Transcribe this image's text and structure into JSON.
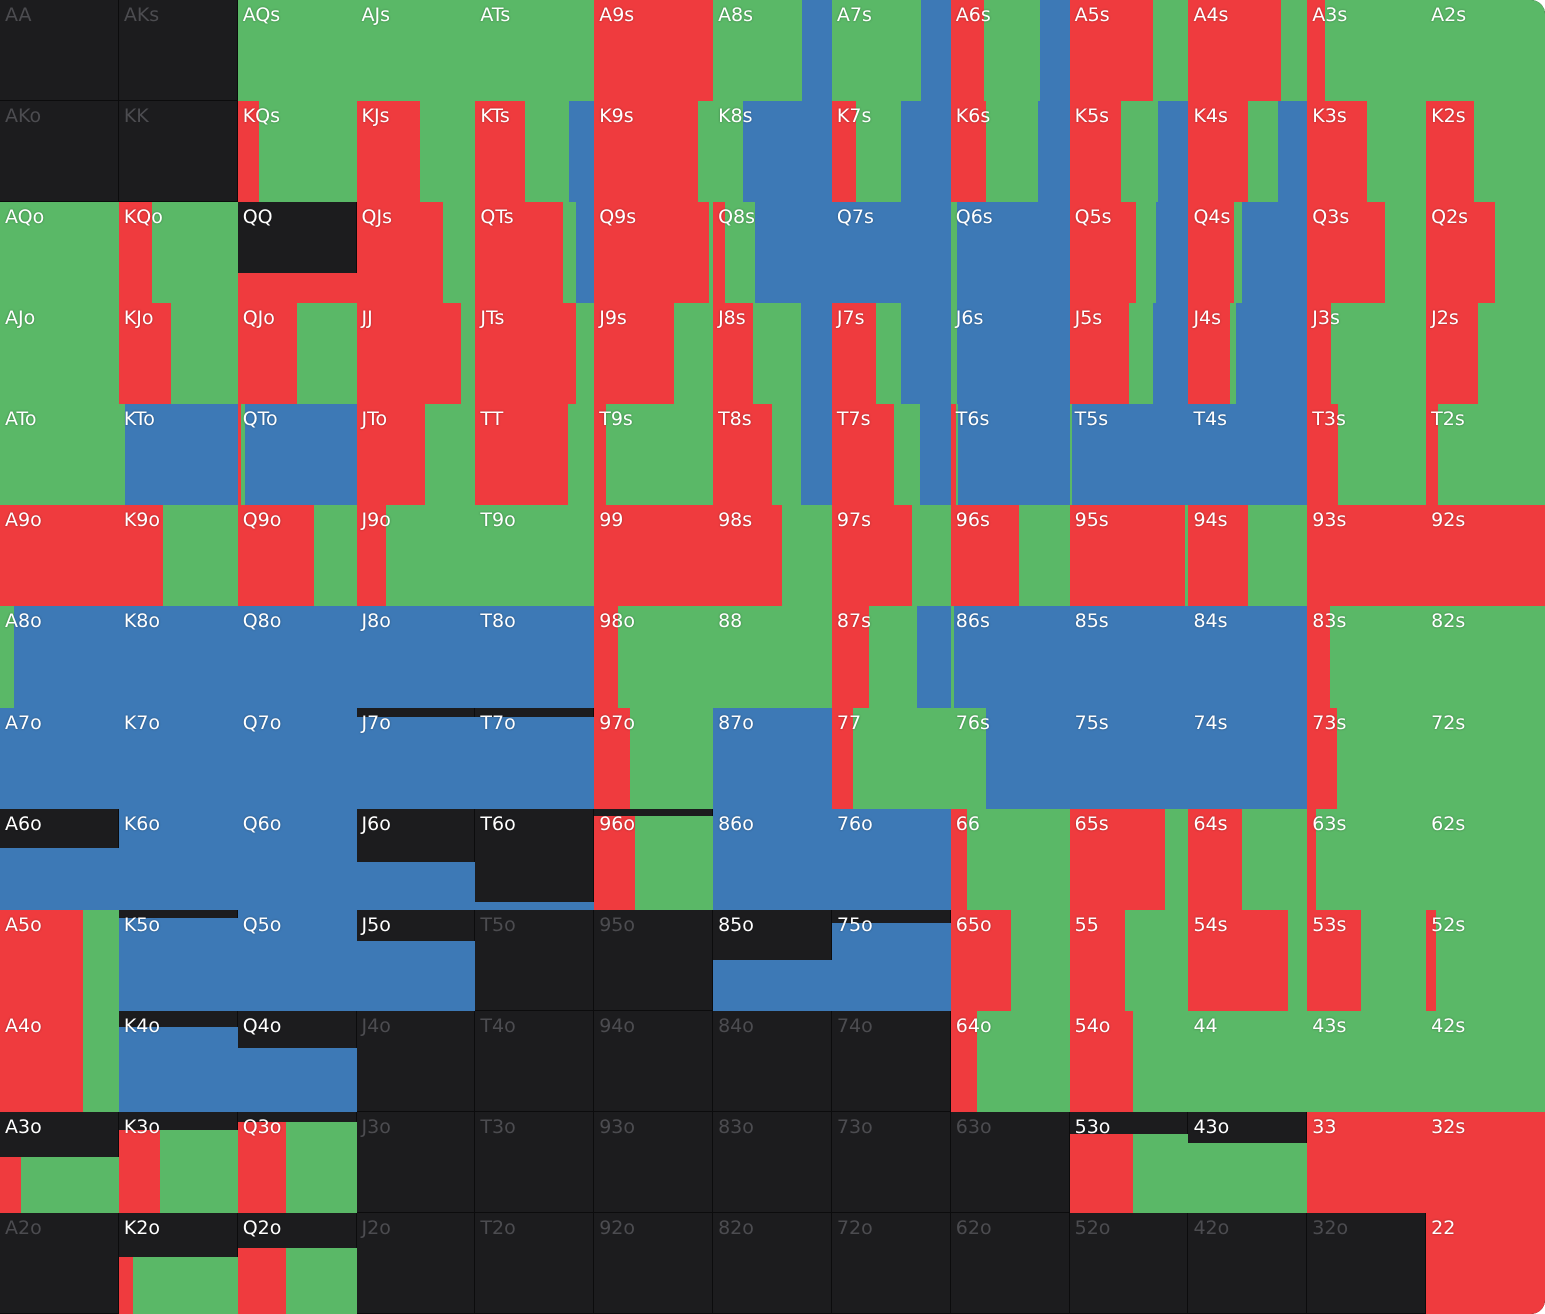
{
  "colors": {
    "red": "#ef3b3e",
    "green": "#5ab867",
    "blue": "#3d79b6",
    "fold": "#1c1c1e"
  },
  "legend": {
    "format": "each hand: [fill fraction of cell height, red share, green share, blue share]"
  },
  "rows": [
    [
      [
        "AA",
        0,
        0,
        0,
        0
      ],
      [
        "AKs",
        0,
        0,
        0,
        0
      ],
      [
        "AQs",
        1,
        0,
        1,
        0
      ],
      [
        "AJs",
        1,
        0,
        1,
        0
      ],
      [
        "ATs",
        1,
        0,
        1,
        0
      ],
      [
        "A9s",
        1,
        1,
        0,
        0
      ],
      [
        "A8s",
        1,
        0,
        0.75,
        0.25
      ],
      [
        "A7s",
        1,
        0,
        0.75,
        0.25
      ],
      [
        "A6s",
        1,
        0.28,
        0.47,
        0.25
      ],
      [
        "A5s",
        1,
        0.7,
        0.3,
        0
      ],
      [
        "A4s",
        1,
        0.78,
        0.22,
        0
      ],
      [
        "A3s",
        1,
        0.15,
        0.85,
        0
      ],
      [
        "A2s",
        1,
        0,
        1,
        0
      ]
    ],
    [
      [
        "AKo",
        0,
        0,
        0,
        0
      ],
      [
        "KK",
        0,
        0,
        0,
        0
      ],
      [
        "KQs",
        1,
        0.18,
        0.82,
        0
      ],
      [
        "KJs",
        1,
        0.53,
        0.47,
        0
      ],
      [
        "KTs",
        1,
        0.42,
        0.37,
        0.21
      ],
      [
        "K9s",
        1,
        0.87,
        0.13,
        0
      ],
      [
        "K8s",
        1,
        0,
        0.25,
        0.75
      ],
      [
        "K7s",
        1,
        0.2,
        0.38,
        0.42
      ],
      [
        "K6s",
        1,
        0.3,
        0.43,
        0.27
      ],
      [
        "K5s",
        1,
        0.43,
        0.31,
        0.26
      ],
      [
        "K4s",
        1,
        0.5,
        0.25,
        0.25
      ],
      [
        "K3s",
        1,
        0.5,
        0.5,
        0
      ],
      [
        "K2s",
        1,
        0.4,
        0.6,
        0
      ]
    ],
    [
      [
        "AQo",
        1,
        0,
        1,
        0
      ],
      [
        "KQo",
        1,
        0.28,
        0.72,
        0
      ],
      [
        "QQ",
        0.3,
        1,
        0,
        0
      ],
      [
        "QJs",
        1,
        0.73,
        0.27,
        0
      ],
      [
        "QTs",
        1,
        0.74,
        0.11,
        0.15
      ],
      [
        "Q9s",
        1,
        0.97,
        0.03,
        0
      ],
      [
        "Q8s",
        1,
        0.1,
        0.25,
        0.65
      ],
      [
        "Q7s",
        1,
        0,
        0,
        1
      ],
      [
        "Q6s",
        1,
        0,
        0.05,
        0.95
      ],
      [
        "Q5s",
        1,
        0.56,
        0.17,
        0.27
      ],
      [
        "Q4s",
        1,
        0.38,
        0.07,
        0.55
      ],
      [
        "Q3s",
        1,
        0.65,
        0.35,
        0
      ],
      [
        "Q2s",
        1,
        0.58,
        0.42,
        0
      ]
    ],
    [
      [
        "AJo",
        1,
        0,
        1,
        0
      ],
      [
        "KJo",
        1,
        0.44,
        0.56,
        0
      ],
      [
        "QJo",
        1,
        0.5,
        0.5,
        0
      ],
      [
        "JJ",
        1,
        0.88,
        0.12,
        0
      ],
      [
        "JTs",
        1,
        0.85,
        0.15,
        0
      ],
      [
        "J9s",
        1,
        0.67,
        0.33,
        0
      ],
      [
        "J8s",
        1,
        0.34,
        0.4,
        0.26
      ],
      [
        "J7s",
        1,
        0.37,
        0.21,
        0.42
      ],
      [
        "J6s",
        1,
        0,
        0.05,
        0.95
      ],
      [
        "J5s",
        1,
        0.5,
        0.2,
        0.3
      ],
      [
        "J4s",
        1,
        0.35,
        0.05,
        0.6
      ],
      [
        "J3s",
        1,
        0.2,
        0.8,
        0
      ],
      [
        "J2s",
        1,
        0.44,
        0.56,
        0
      ]
    ],
    [
      [
        "ATo",
        1,
        0,
        1,
        0
      ],
      [
        "KTo",
        1,
        0,
        0.05,
        0.95
      ],
      [
        "QTo",
        1,
        0.03,
        0.03,
        0.94
      ],
      [
        "JTo",
        1,
        0.58,
        0.42,
        0
      ],
      [
        "TT",
        1,
        0.78,
        0.22,
        0
      ],
      [
        "T9s",
        1,
        0.1,
        0.9,
        0
      ],
      [
        "T8s",
        1,
        0.5,
        0.24,
        0.26
      ],
      [
        "T7s",
        1,
        0.52,
        0.22,
        0.26
      ],
      [
        "T6s",
        1,
        0.04,
        0.02,
        0.94
      ],
      [
        "T5s",
        1,
        0,
        0.02,
        0.98
      ],
      [
        "T4s",
        1,
        0,
        0,
        1
      ],
      [
        "T3s",
        1,
        0.26,
        0.74,
        0
      ],
      [
        "T2s",
        1,
        0.1,
        0.9,
        0
      ]
    ],
    [
      [
        "A9o",
        1,
        1,
        0,
        0
      ],
      [
        "K9o",
        1,
        0.37,
        0.63,
        0
      ],
      [
        "Q9o",
        1,
        0.64,
        0.36,
        0
      ],
      [
        "J9o",
        1,
        0.25,
        0.75,
        0
      ],
      [
        "T9o",
        1,
        0,
        1,
        0
      ],
      [
        "99",
        1,
        1,
        0,
        0
      ],
      [
        "98s",
        1,
        0.58,
        0.42,
        0
      ],
      [
        "97s",
        1,
        0.67,
        0.33,
        0
      ],
      [
        "96s",
        1,
        0.57,
        0.43,
        0
      ],
      [
        "95s",
        1,
        0.97,
        0.03,
        0
      ],
      [
        "94s",
        1,
        0.5,
        0.5,
        0
      ],
      [
        "93s",
        1,
        1,
        0,
        0
      ],
      [
        "92s",
        1,
        1,
        0,
        0
      ]
    ],
    [
      [
        "A8o",
        1,
        0,
        0.12,
        0.88
      ],
      [
        "K8o",
        1,
        0,
        0,
        1
      ],
      [
        "Q8o",
        1,
        0,
        0,
        1
      ],
      [
        "J8o",
        1,
        0,
        0,
        1
      ],
      [
        "T8o",
        1,
        0,
        0,
        1
      ],
      [
        "98o",
        1,
        0.2,
        0.8,
        0
      ],
      [
        "88",
        1,
        0,
        1,
        0
      ],
      [
        "87s",
        1,
        0.31,
        0.41,
        0.28
      ],
      [
        "86s",
        1,
        0,
        0.03,
        0.97
      ],
      [
        "85s",
        1,
        0,
        0,
        1
      ],
      [
        "84s",
        1,
        0,
        0,
        1
      ],
      [
        "83s",
        1,
        0.19,
        0.81,
        0
      ],
      [
        "82s",
        1,
        0,
        1,
        0
      ]
    ],
    [
      [
        "A7o",
        1,
        0,
        0,
        1
      ],
      [
        "K7o",
        1,
        0,
        0,
        1
      ],
      [
        "Q7o",
        1,
        0,
        0,
        1
      ],
      [
        "J7o",
        0.91,
        0,
        0,
        1
      ],
      [
        "T7o",
        0.91,
        0,
        0,
        1
      ],
      [
        "97o",
        1,
        0.3,
        0.7,
        0
      ],
      [
        "87o",
        1,
        0,
        0,
        1
      ],
      [
        "77",
        1,
        0.18,
        0.82,
        0
      ],
      [
        "76s",
        1,
        0,
        0.3,
        0.7
      ],
      [
        "75s",
        1,
        0,
        0,
        1
      ],
      [
        "74s",
        1,
        0,
        0,
        1
      ],
      [
        "73s",
        1,
        0.25,
        0.75,
        0
      ],
      [
        "72s",
        1,
        0,
        1,
        0
      ]
    ],
    [
      [
        "A6o",
        0.61,
        0,
        0,
        1
      ],
      [
        "K6o",
        1,
        0,
        0,
        1
      ],
      [
        "Q6o",
        1,
        0,
        0,
        1
      ],
      [
        "J6o",
        0.47,
        0,
        0,
        1
      ],
      [
        "T6o",
        0.08,
        0,
        0,
        1
      ],
      [
        "96o",
        0.93,
        0.34,
        0.66,
        0
      ],
      [
        "86o",
        1,
        0,
        0,
        1
      ],
      [
        "76o",
        1,
        0,
        0,
        1
      ],
      [
        "66",
        1,
        0.14,
        0.86,
        0
      ],
      [
        "65s",
        1,
        0.8,
        0.2,
        0
      ],
      [
        "64s",
        1,
        0.45,
        0.55,
        0
      ],
      [
        "63s",
        1,
        0.07,
        0.93,
        0
      ],
      [
        "62s",
        1,
        0,
        1,
        0
      ]
    ],
    [
      [
        "A5o",
        1,
        0.7,
        0.3,
        0
      ],
      [
        "K5o",
        0.92,
        0,
        0,
        1
      ],
      [
        "Q5o",
        1,
        0,
        0,
        1
      ],
      [
        "J5o",
        0.69,
        0,
        0,
        1
      ],
      [
        "T5o",
        0,
        0,
        0,
        0
      ],
      [
        "95o",
        0,
        0,
        0,
        0
      ],
      [
        "85o",
        0.5,
        0,
        0,
        1
      ],
      [
        "75o",
        0.87,
        0,
        0,
        1
      ],
      [
        "65o",
        1,
        0.51,
        0.49,
        0
      ],
      [
        "55",
        1,
        0.47,
        0.53,
        0
      ],
      [
        "54s",
        1,
        0.84,
        0.16,
        0
      ],
      [
        "53s",
        1,
        0.45,
        0.55,
        0
      ],
      [
        "52s",
        1,
        0.08,
        0.92,
        0
      ]
    ],
    [
      [
        "A4o",
        1,
        0.7,
        0.3,
        0
      ],
      [
        "K4o",
        0.84,
        0,
        0,
        1
      ],
      [
        "Q4o",
        0.63,
        0,
        0,
        1
      ],
      [
        "J4o",
        0,
        0,
        0,
        0
      ],
      [
        "T4o",
        0,
        0,
        0,
        0
      ],
      [
        "94o",
        0,
        0,
        0,
        0
      ],
      [
        "84o",
        0,
        0,
        0,
        0
      ],
      [
        "74o",
        0,
        0,
        0,
        0
      ],
      [
        "64o",
        1,
        0.22,
        0.78,
        0
      ],
      [
        "54o",
        1,
        0.53,
        0.47,
        0
      ],
      [
        "44",
        1,
        0,
        1,
        0
      ],
      [
        "43s",
        1,
        0,
        1,
        0
      ],
      [
        "42s",
        1,
        0,
        1,
        0
      ]
    ],
    [
      [
        "A3o",
        0.55,
        0.18,
        0.82,
        0
      ],
      [
        "K3o",
        0.82,
        0.35,
        0.65,
        0
      ],
      [
        "Q3o",
        0.9,
        0.41,
        0.59,
        0
      ],
      [
        "J3o",
        0,
        0,
        0,
        0
      ],
      [
        "T3o",
        0,
        0,
        0,
        0
      ],
      [
        "93o",
        0,
        0,
        0,
        0
      ],
      [
        "83o",
        0,
        0,
        0,
        0
      ],
      [
        "73o",
        0,
        0,
        0,
        0
      ],
      [
        "63o",
        0,
        0,
        0,
        0
      ],
      [
        "53o",
        0.78,
        0.53,
        0.47,
        0
      ],
      [
        "43o",
        0.69,
        0,
        1,
        0
      ],
      [
        "33",
        1,
        1,
        0,
        0
      ],
      [
        "32s",
        1,
        1,
        0,
        0
      ]
    ],
    [
      [
        "A2o",
        0,
        0,
        0,
        0
      ],
      [
        "K2o",
        0.56,
        0.12,
        0.88,
        0
      ],
      [
        "Q2o",
        0.65,
        0.41,
        0.59,
        0
      ],
      [
        "J2o",
        0,
        0,
        0,
        0
      ],
      [
        "T2o",
        0,
        0,
        0,
        0
      ],
      [
        "92o",
        0,
        0,
        0,
        0
      ],
      [
        "82o",
        0,
        0,
        0,
        0
      ],
      [
        "72o",
        0,
        0,
        0,
        0
      ],
      [
        "62o",
        0,
        0,
        0,
        0
      ],
      [
        "52o",
        0,
        0,
        0,
        0
      ],
      [
        "42o",
        0,
        0,
        0,
        0
      ],
      [
        "32o",
        0,
        0,
        0,
        0
      ],
      [
        "22",
        1,
        1,
        0,
        0
      ]
    ]
  ]
}
